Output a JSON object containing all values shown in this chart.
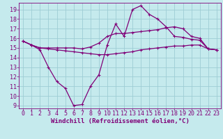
{
  "xlabel": "Windchill (Refroidissement éolien,°C)",
  "bg_color": "#c5eaed",
  "line_color": "#800078",
  "grid_color": "#9ecdd4",
  "x_ticks": [
    0,
    1,
    2,
    3,
    4,
    5,
    6,
    7,
    8,
    9,
    10,
    11,
    12,
    13,
    14,
    15,
    16,
    17,
    18,
    19,
    20,
    21,
    22,
    23
  ],
  "y_ticks": [
    9,
    10,
    11,
    12,
    13,
    14,
    15,
    16,
    17,
    18,
    19
  ],
  "xlim": [
    -0.5,
    23.5
  ],
  "ylim": [
    8.7,
    19.7
  ],
  "line1_y": [
    15.7,
    15.3,
    14.8,
    13.0,
    11.5,
    10.8,
    9.0,
    9.1,
    11.0,
    12.2,
    15.3,
    17.5,
    16.2,
    19.0,
    19.4,
    18.5,
    18.0,
    17.2,
    16.2,
    16.1,
    15.9,
    15.8,
    14.9,
    14.8
  ],
  "line2_y": [
    15.7,
    15.3,
    15.0,
    14.9,
    14.8,
    14.7,
    14.6,
    14.5,
    14.4,
    14.3,
    14.3,
    14.4,
    14.5,
    14.6,
    14.8,
    14.9,
    15.0,
    15.1,
    15.2,
    15.2,
    15.3,
    15.3,
    14.9,
    14.8
  ],
  "line3_y": [
    15.7,
    15.3,
    15.0,
    15.0,
    15.0,
    15.0,
    15.0,
    14.9,
    15.1,
    15.5,
    16.2,
    16.5,
    16.5,
    16.6,
    16.7,
    16.8,
    16.9,
    17.1,
    17.2,
    17.0,
    16.2,
    16.0,
    14.9,
    14.8
  ],
  "marker": "+",
  "markersize": 3.5,
  "linewidth": 0.9,
  "xlabel_fontsize": 6.5,
  "tick_fontsize": 6.0,
  "tick_color": "#800078",
  "spine_color": "#800078"
}
